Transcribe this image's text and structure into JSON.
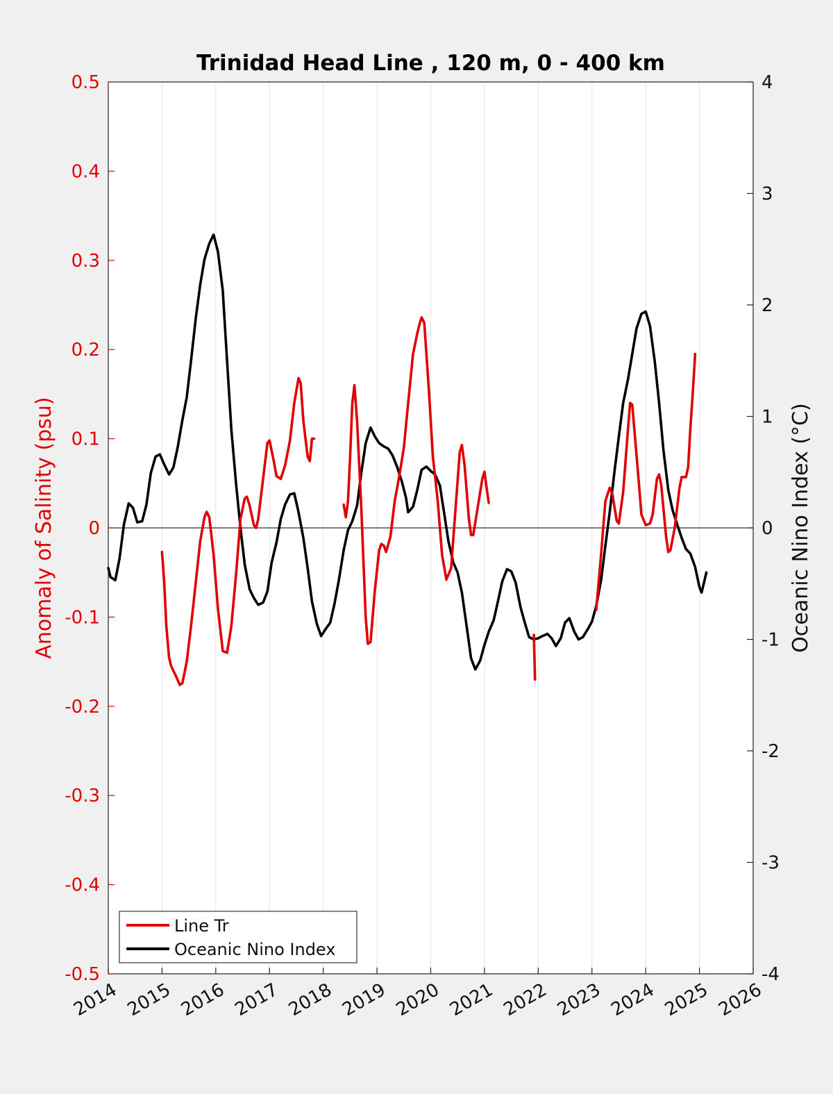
{
  "chart_data": {
    "type": "line",
    "title": "Trinidad Head Line , 120 m, 0 - 400 km",
    "ylabel_left": "Anomaly of Salinity (psu)",
    "ylabel_right": "Oceanic Nino Index (°C)",
    "xlim": [
      2014,
      2026
    ],
    "ylim_left": [
      -0.5,
      0.5
    ],
    "ylim_right": [
      -4,
      4
    ],
    "x_ticks": [
      "2014",
      "2015",
      "2016",
      "2017",
      "2018",
      "2019",
      "2020",
      "2021",
      "2022",
      "2023",
      "2024",
      "2025",
      "2026"
    ],
    "y_ticks_left": [
      "0.5",
      "0.4",
      "0.3",
      "0.2",
      "0.1",
      "0",
      "-0.1",
      "-0.2",
      "-0.3",
      "-0.4",
      "-0.5"
    ],
    "y_ticks_right": [
      "4",
      "3",
      "2",
      "1",
      "0",
      "-1",
      "-2",
      "-3",
      "-4"
    ],
    "grid": "vertical",
    "zero_line": true,
    "legend_position": "bottom-left",
    "colors": {
      "salinity": "#e00000",
      "oni": "#000000",
      "left_axis": "#e00000"
    },
    "series": [
      {
        "name": "Line Tr",
        "axis": "left",
        "segments": [
          [
            [
              2015.0,
              -0.027
            ],
            [
              2015.04,
              -0.06
            ],
            [
              2015.08,
              -0.11
            ],
            [
              2015.13,
              -0.145
            ],
            [
              2015.17,
              -0.155
            ],
            [
              2015.25,
              -0.165
            ],
            [
              2015.33,
              -0.176
            ],
            [
              2015.38,
              -0.174
            ],
            [
              2015.46,
              -0.15
            ],
            [
              2015.54,
              -0.11
            ],
            [
              2015.63,
              -0.06
            ],
            [
              2015.71,
              -0.015
            ],
            [
              2015.79,
              0.012
            ],
            [
              2015.83,
              0.018
            ],
            [
              2015.88,
              0.012
            ],
            [
              2015.96,
              -0.03
            ],
            [
              2016.04,
              -0.09
            ],
            [
              2016.13,
              -0.138
            ],
            [
              2016.21,
              -0.14
            ],
            [
              2016.29,
              -0.11
            ],
            [
              2016.38,
              -0.05
            ],
            [
              2016.46,
              0.01
            ],
            [
              2016.54,
              0.033
            ],
            [
              2016.58,
              0.035
            ],
            [
              2016.63,
              0.025
            ],
            [
              2016.71,
              0.003
            ],
            [
              2016.75,
              0.0
            ],
            [
              2016.79,
              0.01
            ],
            [
              2016.88,
              0.055
            ],
            [
              2016.96,
              0.095
            ],
            [
              2017.0,
              0.098
            ],
            [
              2017.08,
              0.075
            ],
            [
              2017.13,
              0.058
            ],
            [
              2017.21,
              0.055
            ],
            [
              2017.29,
              0.07
            ],
            [
              2017.38,
              0.098
            ],
            [
              2017.46,
              0.14
            ],
            [
              2017.54,
              0.168
            ],
            [
              2017.58,
              0.162
            ],
            [
              2017.63,
              0.12
            ],
            [
              2017.71,
              0.08
            ],
            [
              2017.75,
              0.075
            ],
            [
              2017.79,
              0.1
            ],
            [
              2017.83,
              0.1
            ]
          ],
          [
            [
              2018.38,
              0.026
            ],
            [
              2018.42,
              0.012
            ],
            [
              2018.46,
              0.03
            ],
            [
              2018.5,
              0.08
            ],
            [
              2018.54,
              0.14
            ],
            [
              2018.58,
              0.16
            ],
            [
              2018.63,
              0.12
            ],
            [
              2018.71,
              0.02
            ],
            [
              2018.79,
              -0.1
            ],
            [
              2018.83,
              -0.13
            ],
            [
              2018.88,
              -0.128
            ],
            [
              2018.96,
              -0.07
            ],
            [
              2019.04,
              -0.025
            ],
            [
              2019.08,
              -0.018
            ],
            [
              2019.13,
              -0.02
            ],
            [
              2019.17,
              -0.027
            ],
            [
              2019.25,
              -0.01
            ],
            [
              2019.33,
              0.03
            ],
            [
              2019.42,
              0.06
            ],
            [
              2019.5,
              0.09
            ],
            [
              2019.58,
              0.14
            ],
            [
              2019.67,
              0.195
            ],
            [
              2019.75,
              0.218
            ],
            [
              2019.79,
              0.228
            ],
            [
              2019.83,
              0.236
            ],
            [
              2019.88,
              0.23
            ],
            [
              2019.96,
              0.16
            ],
            [
              2020.04,
              0.08
            ],
            [
              2020.13,
              0.03
            ],
            [
              2020.21,
              -0.03
            ],
            [
              2020.29,
              -0.058
            ],
            [
              2020.38,
              -0.045
            ],
            [
              2020.46,
              0.02
            ],
            [
              2020.54,
              0.085
            ],
            [
              2020.58,
              0.093
            ],
            [
              2020.63,
              0.07
            ],
            [
              2020.71,
              0.01
            ],
            [
              2020.75,
              -0.008
            ],
            [
              2020.79,
              -0.008
            ],
            [
              2020.88,
              0.025
            ],
            [
              2020.96,
              0.055
            ],
            [
              2021.0,
              0.063
            ],
            [
              2021.04,
              0.045
            ],
            [
              2021.08,
              0.028
            ]
          ],
          [
            [
              2021.92,
              -0.12
            ],
            [
              2021.94,
              -0.17
            ]
          ],
          [
            [
              2023.08,
              -0.092
            ],
            [
              2023.17,
              -0.03
            ],
            [
              2023.25,
              0.03
            ],
            [
              2023.33,
              0.045
            ],
            [
              2023.38,
              0.038
            ],
            [
              2023.46,
              0.008
            ],
            [
              2023.5,
              0.005
            ],
            [
              2023.58,
              0.04
            ],
            [
              2023.67,
              0.11
            ],
            [
              2023.71,
              0.14
            ],
            [
              2023.75,
              0.138
            ],
            [
              2023.79,
              0.11
            ],
            [
              2023.88,
              0.045
            ],
            [
              2023.92,
              0.015
            ],
            [
              2024.0,
              0.003
            ],
            [
              2024.08,
              0.005
            ],
            [
              2024.13,
              0.015
            ],
            [
              2024.21,
              0.055
            ],
            [
              2024.25,
              0.06
            ],
            [
              2024.29,
              0.048
            ],
            [
              2024.38,
              -0.01
            ],
            [
              2024.42,
              -0.027
            ],
            [
              2024.46,
              -0.025
            ],
            [
              2024.54,
              0.0
            ],
            [
              2024.63,
              0.045
            ],
            [
              2024.67,
              0.057
            ],
            [
              2024.75,
              0.057
            ],
            [
              2024.79,
              0.068
            ],
            [
              2024.83,
              0.11
            ],
            [
              2024.88,
              0.155
            ],
            [
              2024.92,
              0.195
            ]
          ]
        ]
      },
      {
        "name": "Oceanic Nino Index",
        "axis": "right",
        "segments": [
          [
            [
              2014.0,
              -0.36
            ],
            [
              2014.04,
              -0.44
            ],
            [
              2014.13,
              -0.47
            ],
            [
              2014.21,
              -0.27
            ],
            [
              2014.29,
              0.03
            ],
            [
              2014.38,
              0.22
            ],
            [
              2014.46,
              0.18
            ],
            [
              2014.54,
              0.05
            ],
            [
              2014.63,
              0.06
            ],
            [
              2014.71,
              0.21
            ],
            [
              2014.79,
              0.49
            ],
            [
              2014.88,
              0.64
            ],
            [
              2014.96,
              0.66
            ],
            [
              2015.04,
              0.57
            ],
            [
              2015.13,
              0.48
            ],
            [
              2015.21,
              0.54
            ],
            [
              2015.29,
              0.72
            ],
            [
              2015.38,
              0.97
            ],
            [
              2015.46,
              1.17
            ],
            [
              2015.54,
              1.5
            ],
            [
              2015.63,
              1.89
            ],
            [
              2015.71,
              2.18
            ],
            [
              2015.79,
              2.41
            ],
            [
              2015.88,
              2.55
            ],
            [
              2015.96,
              2.63
            ],
            [
              2016.04,
              2.48
            ],
            [
              2016.13,
              2.13
            ],
            [
              2016.21,
              1.5
            ],
            [
              2016.29,
              0.88
            ],
            [
              2016.38,
              0.38
            ],
            [
              2016.46,
              0.0
            ],
            [
              2016.54,
              -0.33
            ],
            [
              2016.63,
              -0.55
            ],
            [
              2016.71,
              -0.63
            ],
            [
              2016.79,
              -0.69
            ],
            [
              2016.88,
              -0.67
            ],
            [
              2016.96,
              -0.57
            ],
            [
              2017.04,
              -0.31
            ],
            [
              2017.13,
              -0.13
            ],
            [
              2017.21,
              0.08
            ],
            [
              2017.29,
              0.21
            ],
            [
              2017.38,
              0.3
            ],
            [
              2017.46,
              0.31
            ],
            [
              2017.54,
              0.14
            ],
            [
              2017.63,
              -0.09
            ],
            [
              2017.71,
              -0.36
            ],
            [
              2017.79,
              -0.66
            ],
            [
              2017.88,
              -0.86
            ],
            [
              2017.96,
              -0.97
            ],
            [
              2018.04,
              -0.91
            ],
            [
              2018.13,
              -0.85
            ],
            [
              2018.21,
              -0.68
            ],
            [
              2018.29,
              -0.47
            ],
            [
              2018.38,
              -0.2
            ],
            [
              2018.46,
              -0.02
            ],
            [
              2018.54,
              0.06
            ],
            [
              2018.63,
              0.2
            ],
            [
              2018.71,
              0.5
            ],
            [
              2018.79,
              0.76
            ],
            [
              2018.88,
              0.9
            ],
            [
              2018.96,
              0.82
            ],
            [
              2019.04,
              0.76
            ],
            [
              2019.13,
              0.73
            ],
            [
              2019.21,
              0.71
            ],
            [
              2019.29,
              0.65
            ],
            [
              2019.38,
              0.54
            ],
            [
              2019.46,
              0.42
            ],
            [
              2019.54,
              0.27
            ],
            [
              2019.58,
              0.14
            ],
            [
              2019.67,
              0.19
            ],
            [
              2019.75,
              0.34
            ],
            [
              2019.83,
              0.52
            ],
            [
              2019.92,
              0.55
            ],
            [
              2020.0,
              0.51
            ],
            [
              2020.08,
              0.48
            ],
            [
              2020.17,
              0.38
            ],
            [
              2020.25,
              0.13
            ],
            [
              2020.33,
              -0.12
            ],
            [
              2020.42,
              -0.31
            ],
            [
              2020.5,
              -0.4
            ],
            [
              2020.58,
              -0.58
            ],
            [
              2020.67,
              -0.89
            ],
            [
              2020.75,
              -1.17
            ],
            [
              2020.83,
              -1.27
            ],
            [
              2020.92,
              -1.19
            ],
            [
              2021.0,
              -1.05
            ],
            [
              2021.08,
              -0.93
            ],
            [
              2021.17,
              -0.83
            ],
            [
              2021.25,
              -0.66
            ],
            [
              2021.33,
              -0.48
            ],
            [
              2021.42,
              -0.37
            ],
            [
              2021.5,
              -0.39
            ],
            [
              2021.58,
              -0.49
            ],
            [
              2021.67,
              -0.71
            ],
            [
              2021.75,
              -0.85
            ],
            [
              2021.83,
              -0.98
            ],
            [
              2021.92,
              -1.0
            ],
            [
              2022.0,
              -0.99
            ],
            [
              2022.08,
              -0.97
            ],
            [
              2022.17,
              -0.95
            ],
            [
              2022.25,
              -0.99
            ],
            [
              2022.33,
              -1.06
            ],
            [
              2022.42,
              -0.99
            ],
            [
              2022.5,
              -0.85
            ],
            [
              2022.58,
              -0.81
            ],
            [
              2022.67,
              -0.93
            ],
            [
              2022.75,
              -1.0
            ],
            [
              2022.83,
              -0.98
            ],
            [
              2022.92,
              -0.91
            ],
            [
              2023.0,
              -0.84
            ],
            [
              2023.08,
              -0.7
            ],
            [
              2023.17,
              -0.47
            ],
            [
              2023.25,
              -0.16
            ],
            [
              2023.33,
              0.14
            ],
            [
              2023.42,
              0.51
            ],
            [
              2023.5,
              0.82
            ],
            [
              2023.58,
              1.12
            ],
            [
              2023.67,
              1.33
            ],
            [
              2023.75,
              1.56
            ],
            [
              2023.83,
              1.79
            ],
            [
              2023.92,
              1.92
            ],
            [
              2024.0,
              1.94
            ],
            [
              2024.08,
              1.81
            ],
            [
              2024.17,
              1.49
            ],
            [
              2024.25,
              1.12
            ],
            [
              2024.33,
              0.7
            ],
            [
              2024.42,
              0.34
            ],
            [
              2024.5,
              0.16
            ],
            [
              2024.58,
              0.04
            ],
            [
              2024.67,
              -0.09
            ],
            [
              2024.75,
              -0.19
            ],
            [
              2024.83,
              -0.23
            ],
            [
              2024.92,
              -0.35
            ],
            [
              2025.0,
              -0.53
            ],
            [
              2025.04,
              -0.58
            ],
            [
              2025.13,
              -0.4
            ]
          ]
        ]
      }
    ]
  },
  "legend": {
    "items": [
      {
        "label": "Line Tr",
        "color": "#e00000"
      },
      {
        "label": "Oceanic Nino Index",
        "color": "#000000"
      }
    ]
  }
}
